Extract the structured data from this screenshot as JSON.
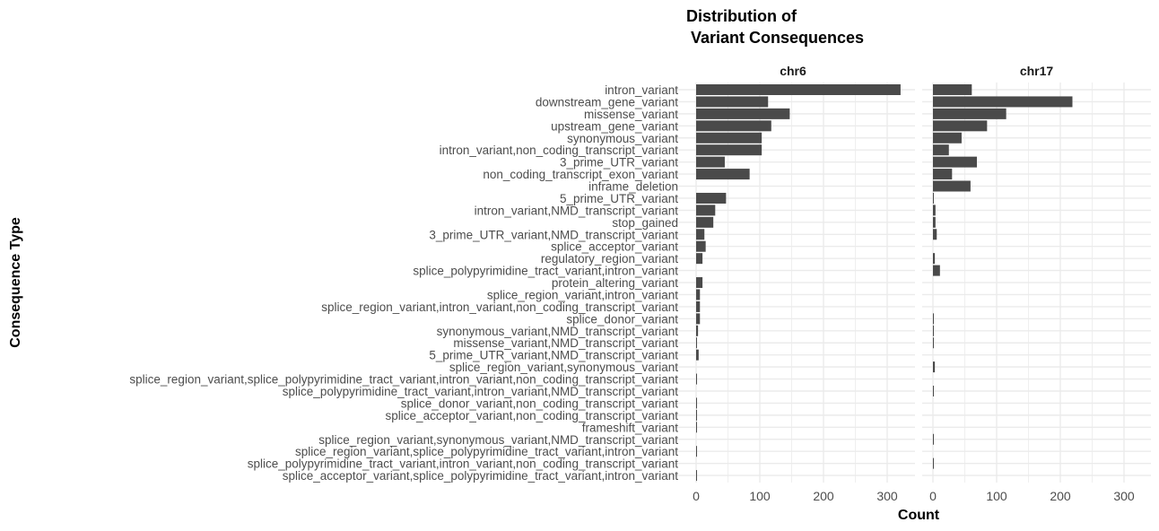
{
  "chart_data": {
    "type": "bar",
    "orientation": "horizontal",
    "title_lines": [
      "Distribution of",
      " Variant Consequences"
    ],
    "xlabel": "Count",
    "ylabel": "Consequence Type",
    "xlim": [
      0,
      330
    ],
    "xticks": [
      0,
      100,
      200,
      300
    ],
    "grid": true,
    "facets": [
      "chr6",
      "chr17"
    ],
    "categories": [
      "intron_variant",
      "downstream_gene_variant",
      "missense_variant",
      "upstream_gene_variant",
      "synonymous_variant",
      "intron_variant,non_coding_transcript_variant",
      "3_prime_UTR_variant",
      "non_coding_transcript_exon_variant",
      "inframe_deletion",
      "5_prime_UTR_variant",
      "intron_variant,NMD_transcript_variant",
      "stop_gained",
      "3_prime_UTR_variant,NMD_transcript_variant",
      "splice_acceptor_variant",
      "regulatory_region_variant",
      "splice_polypyrimidine_tract_variant,intron_variant",
      "protein_altering_variant",
      "splice_region_variant,intron_variant",
      "splice_region_variant,intron_variant,non_coding_transcript_variant",
      "splice_donor_variant",
      "synonymous_variant,NMD_transcript_variant",
      "missense_variant,NMD_transcript_variant",
      "5_prime_UTR_variant,NMD_transcript_variant",
      "splice_region_variant,synonymous_variant",
      "splice_region_variant,splice_polypyrimidine_tract_variant,intron_variant,non_coding_transcript_variant",
      "splice_polypyrimidine_tract_variant,intron_variant,NMD_transcript_variant",
      "splice_donor_variant,non_coding_transcript_variant",
      "splice_acceptor_variant,non_coding_transcript_variant",
      "frameshift_variant",
      "splice_region_variant,synonymous_variant,NMD_transcript_variant",
      "splice_region_variant,splice_polypyrimidine_tract_variant,intron_variant",
      "splice_polypyrimidine_tract_variant,intron_variant,non_coding_transcript_variant",
      "splice_acceptor_variant,splice_polypyrimidine_tract_variant,intron_variant"
    ],
    "series": [
      {
        "name": "chr6",
        "values": [
          321,
          113,
          147,
          118,
          103,
          103,
          45,
          84,
          0,
          47,
          30,
          27,
          13,
          15,
          10,
          0,
          10,
          6,
          6,
          6,
          3,
          1,
          4,
          0,
          1,
          0,
          1,
          1,
          1,
          0,
          1,
          0,
          1
        ]
      },
      {
        "name": "chr17",
        "values": [
          61,
          219,
          115,
          85,
          45,
          25,
          69,
          30,
          59,
          1,
          4,
          4,
          6,
          0,
          3,
          11,
          0,
          0,
          0,
          1,
          1,
          1,
          0,
          3,
          0,
          1,
          0,
          0,
          0,
          1,
          0,
          1,
          0
        ]
      }
    ],
    "colors": {
      "bar": "#4a4a4a",
      "grid": "#ebebeb"
    }
  }
}
